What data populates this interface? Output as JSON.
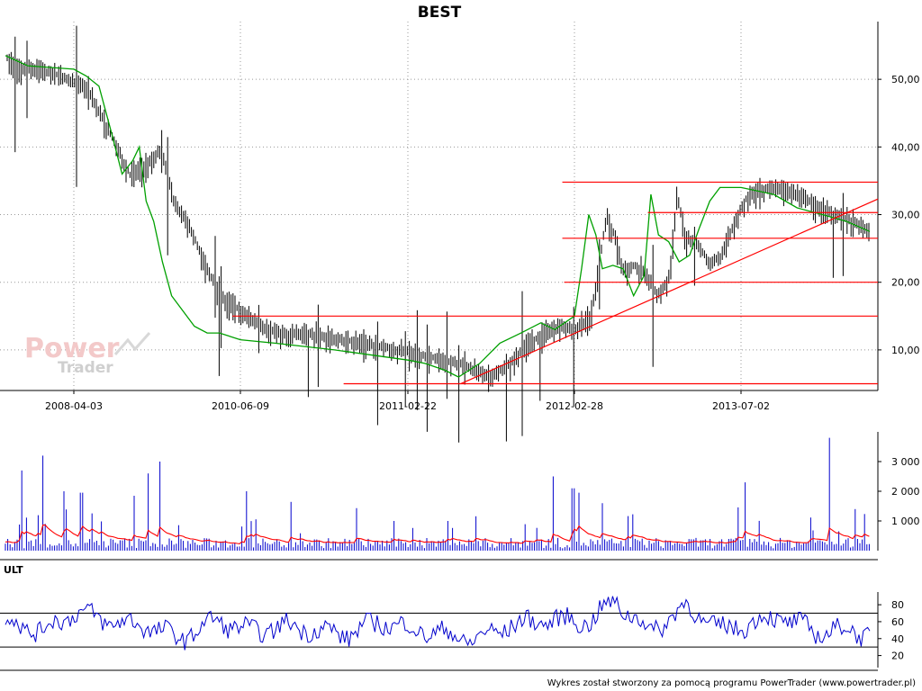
{
  "chart_data": [
    {
      "type": "candlestick",
      "title": "BEST",
      "x_ticks": [
        "2008-04-03",
        "2010-06-09",
        "2011-02-22",
        "2012-02-28",
        "2013-07-02"
      ],
      "y_ticks": [
        "10,00",
        "20,00",
        "30,00",
        "40,00",
        "50,00"
      ],
      "ylim": [
        4,
        58
      ],
      "grid": true,
      "colors": {
        "price": "#000000",
        "moving_average": "#00a000",
        "support_lines": "#ff0000"
      },
      "moving_average": [
        [
          "2008-01-02",
          53.5
        ],
        [
          "2008-02-01",
          52
        ],
        [
          "2008-04-03",
          51.5
        ],
        [
          "2008-06-01",
          50.5
        ],
        [
          "2008-08-01",
          49
        ],
        [
          "2008-10-01",
          42
        ],
        [
          "2008-11-20",
          36
        ],
        [
          "2009-01-10",
          38
        ],
        [
          "2009-02-10",
          40
        ],
        [
          "2009-03-15",
          32
        ],
        [
          "2009-04-20",
          29
        ],
        [
          "2009-06-01",
          23
        ],
        [
          "2009-07-15",
          18
        ],
        [
          "2009-09-01",
          16
        ],
        [
          "2009-11-01",
          13.5
        ],
        [
          "2010-01-01",
          12.5
        ],
        [
          "2010-03-01",
          12.5
        ],
        [
          "2010-06-09",
          11.5
        ],
        [
          "2010-08-01",
          11
        ],
        [
          "2010-11-01",
          10
        ],
        [
          "2011-02-22",
          8.5
        ],
        [
          "2011-04-01",
          8
        ],
        [
          "2011-05-15",
          7
        ],
        [
          "2011-06-15",
          6
        ],
        [
          "2011-08-01",
          8
        ],
        [
          "2011-09-15",
          11
        ],
        [
          "2011-11-01",
          12.5
        ],
        [
          "2011-12-15",
          14
        ],
        [
          "2012-01-15",
          13
        ],
        [
          "2012-02-28",
          15
        ],
        [
          "2012-03-20",
          22
        ],
        [
          "2012-04-10",
          30
        ],
        [
          "2012-05-01",
          27
        ],
        [
          "2012-05-20",
          22
        ],
        [
          "2012-06-20",
          22.5
        ],
        [
          "2012-07-20",
          22
        ],
        [
          "2012-08-20",
          18
        ],
        [
          "2012-09-20",
          21
        ],
        [
          "2012-10-10",
          33
        ],
        [
          "2012-11-01",
          27
        ],
        [
          "2012-12-01",
          26
        ],
        [
          "2013-01-01",
          23
        ],
        [
          "2013-02-01",
          24
        ],
        [
          "2013-03-01",
          28
        ],
        [
          "2013-04-01",
          32
        ],
        [
          "2013-05-01",
          34
        ],
        [
          "2013-07-02",
          34
        ],
        [
          "2013-09-01",
          33
        ],
        [
          "2013-10-15",
          31
        ],
        [
          "2013-12-01",
          30
        ],
        [
          "2014-01-15",
          29
        ],
        [
          "2014-02-28",
          27.5
        ]
      ],
      "support_resistance_levels": [
        {
          "from": "2012-02-01",
          "to": "2014-03-15",
          "y": 34.8
        },
        {
          "from": "2012-10-01",
          "to": "2014-03-15",
          "y": 30.3
        },
        {
          "from": "2012-02-01",
          "to": "2014-03-15",
          "y": 26.5
        },
        {
          "from": "2012-02-05",
          "to": "2014-03-15",
          "y": 20.0
        },
        {
          "from": "2010-05-01",
          "to": "2014-03-15",
          "y": 15.0
        },
        {
          "from": "2010-11-15",
          "to": "2014-03-15",
          "y": 5.0
        }
      ],
      "trendline": {
        "from": [
          "2011-06-20",
          5.0
        ],
        "to": [
          "2014-03-15",
          32.3
        ]
      }
    },
    {
      "type": "bar",
      "y_ticks": [
        "1 000",
        "2 000",
        "3 000"
      ],
      "ylim": [
        0,
        4000
      ],
      "colors": {
        "bars": "#0000cc",
        "average": "#ff0000"
      },
      "peak_values": [
        [
          "2008-02-20",
          3200
        ],
        [
          "2008-01-25",
          2700
        ],
        [
          "2008-03-20",
          2000
        ],
        [
          "2008-05-10",
          1950
        ],
        [
          "2009-01-15",
          1850
        ],
        [
          "2009-03-25",
          2600
        ],
        [
          "2009-05-15",
          3000
        ],
        [
          "2010-06-20",
          2000
        ],
        [
          "2011-02-01",
          1000
        ],
        [
          "2011-05-20",
          1000
        ],
        [
          "2012-01-10",
          2500
        ],
        [
          "2012-02-25",
          2100
        ],
        [
          "2012-03-15",
          1950
        ],
        [
          "2012-05-20",
          1600
        ],
        [
          "2013-07-10",
          2300
        ],
        [
          "2013-12-15",
          3800
        ],
        [
          "2014-02-01",
          1400
        ]
      ]
    },
    {
      "type": "line",
      "indicator": "ULT",
      "y_ticks": [
        "20",
        "40",
        "60",
        "80"
      ],
      "ylim": [
        10,
        95
      ],
      "reference_lines": [
        30,
        70
      ],
      "colors": {
        "line": "#0000cc"
      },
      "values": [
        [
          "2008-01-02",
          62
        ],
        [
          "2008-04-03",
          48
        ],
        [
          "2008-07-01",
          72
        ],
        [
          "2008-10-01",
          60
        ],
        [
          "2009-01-01",
          55
        ],
        [
          "2009-04-01",
          40
        ],
        [
          "2009-07-01",
          62
        ],
        [
          "2009-10-01",
          48
        ],
        [
          "2010-01-01",
          55
        ],
        [
          "2010-06-09",
          45
        ],
        [
          "2010-09-01",
          60
        ],
        [
          "2010-12-01",
          50
        ],
        [
          "2011-02-22",
          45
        ],
        [
          "2011-05-01",
          38
        ],
        [
          "2011-08-01",
          55
        ],
        [
          "2011-11-01",
          62
        ],
        [
          "2012-02-28",
          60
        ],
        [
          "2012-05-01",
          85
        ],
        [
          "2012-08-01",
          48
        ],
        [
          "2012-11-01",
          78
        ],
        [
          "2013-02-01",
          50
        ],
        [
          "2013-07-02",
          66
        ],
        [
          "2013-10-01",
          48
        ],
        [
          "2014-01-01",
          50
        ],
        [
          "2014-02-28",
          45
        ]
      ]
    }
  ],
  "footer": {
    "credit": "Wykres został stworzony za pomocą programu PowerTrader (www.powertrader.pl)"
  },
  "watermark": {
    "line1": "Power",
    "line2": "Trader"
  },
  "indicator_label": "ULT"
}
